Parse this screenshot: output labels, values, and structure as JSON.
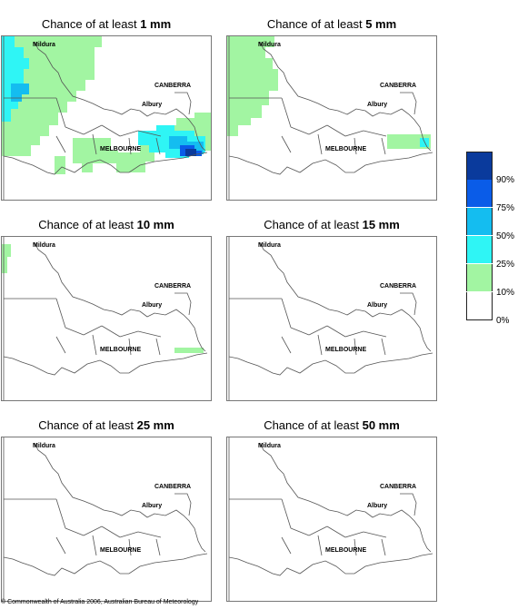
{
  "panels": [
    {
      "prefix": "Chance of at least ",
      "amount": "1 mm"
    },
    {
      "prefix": "Chance of at least ",
      "amount": "5 mm"
    },
    {
      "prefix": "Chance of at least ",
      "amount": "10 mm"
    },
    {
      "prefix": "Chance of at least ",
      "amount": "15 mm"
    },
    {
      "prefix": "Chance of at least ",
      "amount": "25 mm"
    },
    {
      "prefix": "Chance of at least ",
      "amount": "50 mm"
    }
  ],
  "cities": {
    "mildura": "Mildura",
    "canberra": "CANBERRA",
    "albury": "Albury",
    "melbourne": "MELBOURNE"
  },
  "legend": {
    "labels": [
      "90%",
      "75%",
      "50%",
      "25%",
      "10%",
      "0%"
    ],
    "colors": [
      "#0a3a9c",
      "#0a5ce8",
      "#14bdf0",
      "#2ff5f5",
      "#a2f5a2",
      "#ffffff"
    ]
  },
  "copyright": "© Commonwealth of Australia 2006, Australian Bureau of Meteorology"
}
